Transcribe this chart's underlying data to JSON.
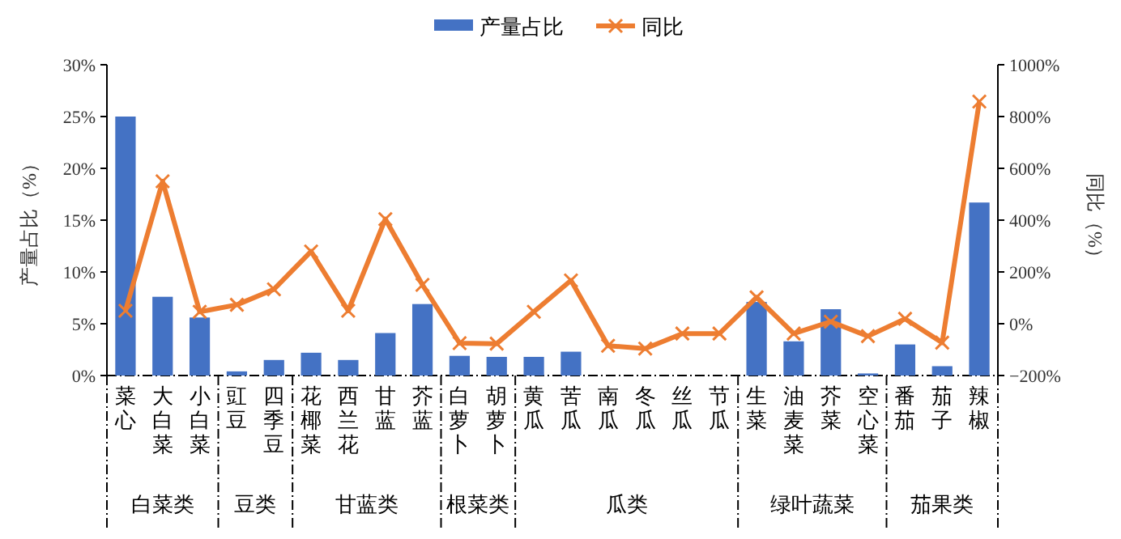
{
  "chart_data": {
    "type": "bar",
    "categories": [
      "菜心",
      "大白菜",
      "小白菜",
      "豇豆",
      "四季豆",
      "花椰菜",
      "西兰花",
      "甘蓝",
      "芥蓝",
      "白萝卜",
      "胡萝卜",
      "黄瓜",
      "苦瓜",
      "南瓜",
      "冬瓜",
      "丝瓜",
      "节瓜",
      "生菜",
      "油麦菜",
      "芥菜",
      "空心菜",
      "番茄",
      "茄子",
      "辣椒"
    ],
    "series": [
      {
        "name": "产量占比",
        "color": "#4472c4",
        "values": [
          25,
          7.6,
          5.6,
          0.4,
          1.5,
          2.2,
          1.5,
          4.1,
          6.9,
          1.9,
          1.8,
          1.8,
          2.3,
          0,
          0,
          0,
          0,
          7.1,
          3.3,
          6.4,
          0.2,
          3.0,
          0.9,
          16.7
        ]
      },
      {
        "name": "同比",
        "type": "line",
        "axis": "y2",
        "color": "#ed7d31",
        "marker": "cross",
        "values": [
          50,
          550,
          46,
          73,
          133,
          279,
          50,
          404,
          150,
          -75,
          -77,
          46,
          167,
          -85,
          -96,
          -38,
          -38,
          102,
          -38,
          8,
          -48,
          19,
          -73,
          858
        ]
      }
    ],
    "ylabel": "产量占比（%）",
    "y2label": "同比（%）",
    "ylim": [
      0,
      30
    ],
    "yticks": [
      {
        "value": 0,
        "label": "0%"
      },
      {
        "value": 5,
        "label": "5%"
      },
      {
        "value": 10,
        "label": "10%"
      },
      {
        "value": 15,
        "label": "15%"
      },
      {
        "value": 20,
        "label": "20%"
      },
      {
        "value": 25,
        "label": "25%"
      },
      {
        "value": 30,
        "label": "30%"
      }
    ],
    "y2lim": [
      -200,
      1000
    ],
    "y2ticks": [
      {
        "value": -200,
        "label": "−200%"
      },
      {
        "value": 0,
        "label": "0%"
      },
      {
        "value": 200,
        "label": "200%"
      },
      {
        "value": 400,
        "label": "400%"
      },
      {
        "value": 600,
        "label": "600%"
      },
      {
        "value": 800,
        "label": "800%"
      },
      {
        "value": 1000,
        "label": "1000%"
      }
    ],
    "annotations": [
      "白菜类",
      "豆类",
      "甘蓝类",
      "根菜类",
      "瓜类",
      "绿叶蔬菜",
      "茄果类"
    ],
    "legend": "top",
    "grid": false
  }
}
